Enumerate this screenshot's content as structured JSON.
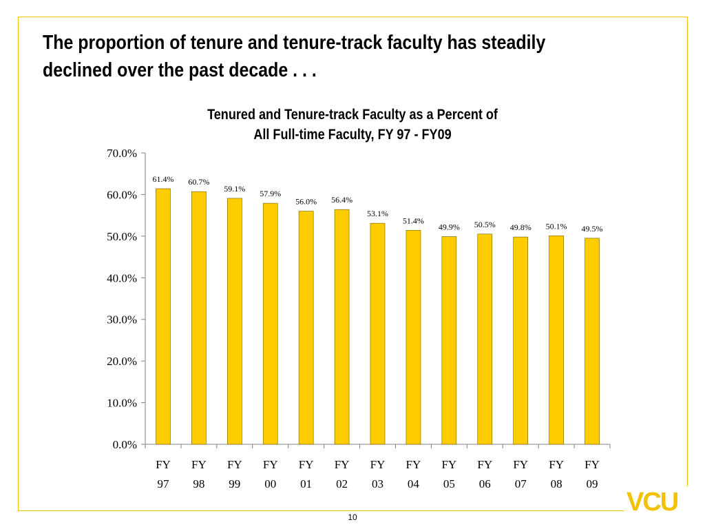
{
  "slide": {
    "title": "The proportion of tenure and tenure-track faculty has steadily\ndeclined over the past decade . . .",
    "page_number": "10",
    "logo_text": "VCU"
  },
  "colors": {
    "bar": "#ffcc00",
    "bar_stroke": "#6b5a00",
    "frame": "#f2c200",
    "axis": "#808080"
  },
  "chart_data": {
    "type": "bar",
    "title": "Tenured and Tenure-track Faculty as a Percent of\nAll Full-time Faculty, FY 97 - FY09",
    "categories": [
      [
        "FY",
        "97"
      ],
      [
        "FY",
        "98"
      ],
      [
        "FY",
        "99"
      ],
      [
        "FY",
        "00"
      ],
      [
        "FY",
        "01"
      ],
      [
        "FY",
        "02"
      ],
      [
        "FY",
        "03"
      ],
      [
        "FY",
        "04"
      ],
      [
        "FY",
        "05"
      ],
      [
        "FY",
        "06"
      ],
      [
        "FY",
        "07"
      ],
      [
        "FY",
        "08"
      ],
      [
        "FY",
        "09"
      ]
    ],
    "values": [
      61.4,
      60.7,
      59.1,
      57.9,
      56.0,
      56.4,
      53.1,
      51.4,
      49.9,
      50.5,
      49.8,
      50.1,
      49.5
    ],
    "data_labels": [
      "61.4%",
      "60.7%",
      "59.1%",
      "57.9%",
      "56.0%",
      "56.4%",
      "53.1%",
      "51.4%",
      "49.9%",
      "50.5%",
      "49.8%",
      "50.1%",
      "49.5%"
    ],
    "ylim": [
      0,
      70
    ],
    "yticks": [
      0,
      10,
      20,
      30,
      40,
      50,
      60,
      70
    ],
    "ytick_labels": [
      "0.0%",
      "10.0%",
      "20.0%",
      "30.0%",
      "40.0%",
      "50.0%",
      "60.0%",
      "70.0%"
    ],
    "grid": false,
    "legend": "none"
  }
}
